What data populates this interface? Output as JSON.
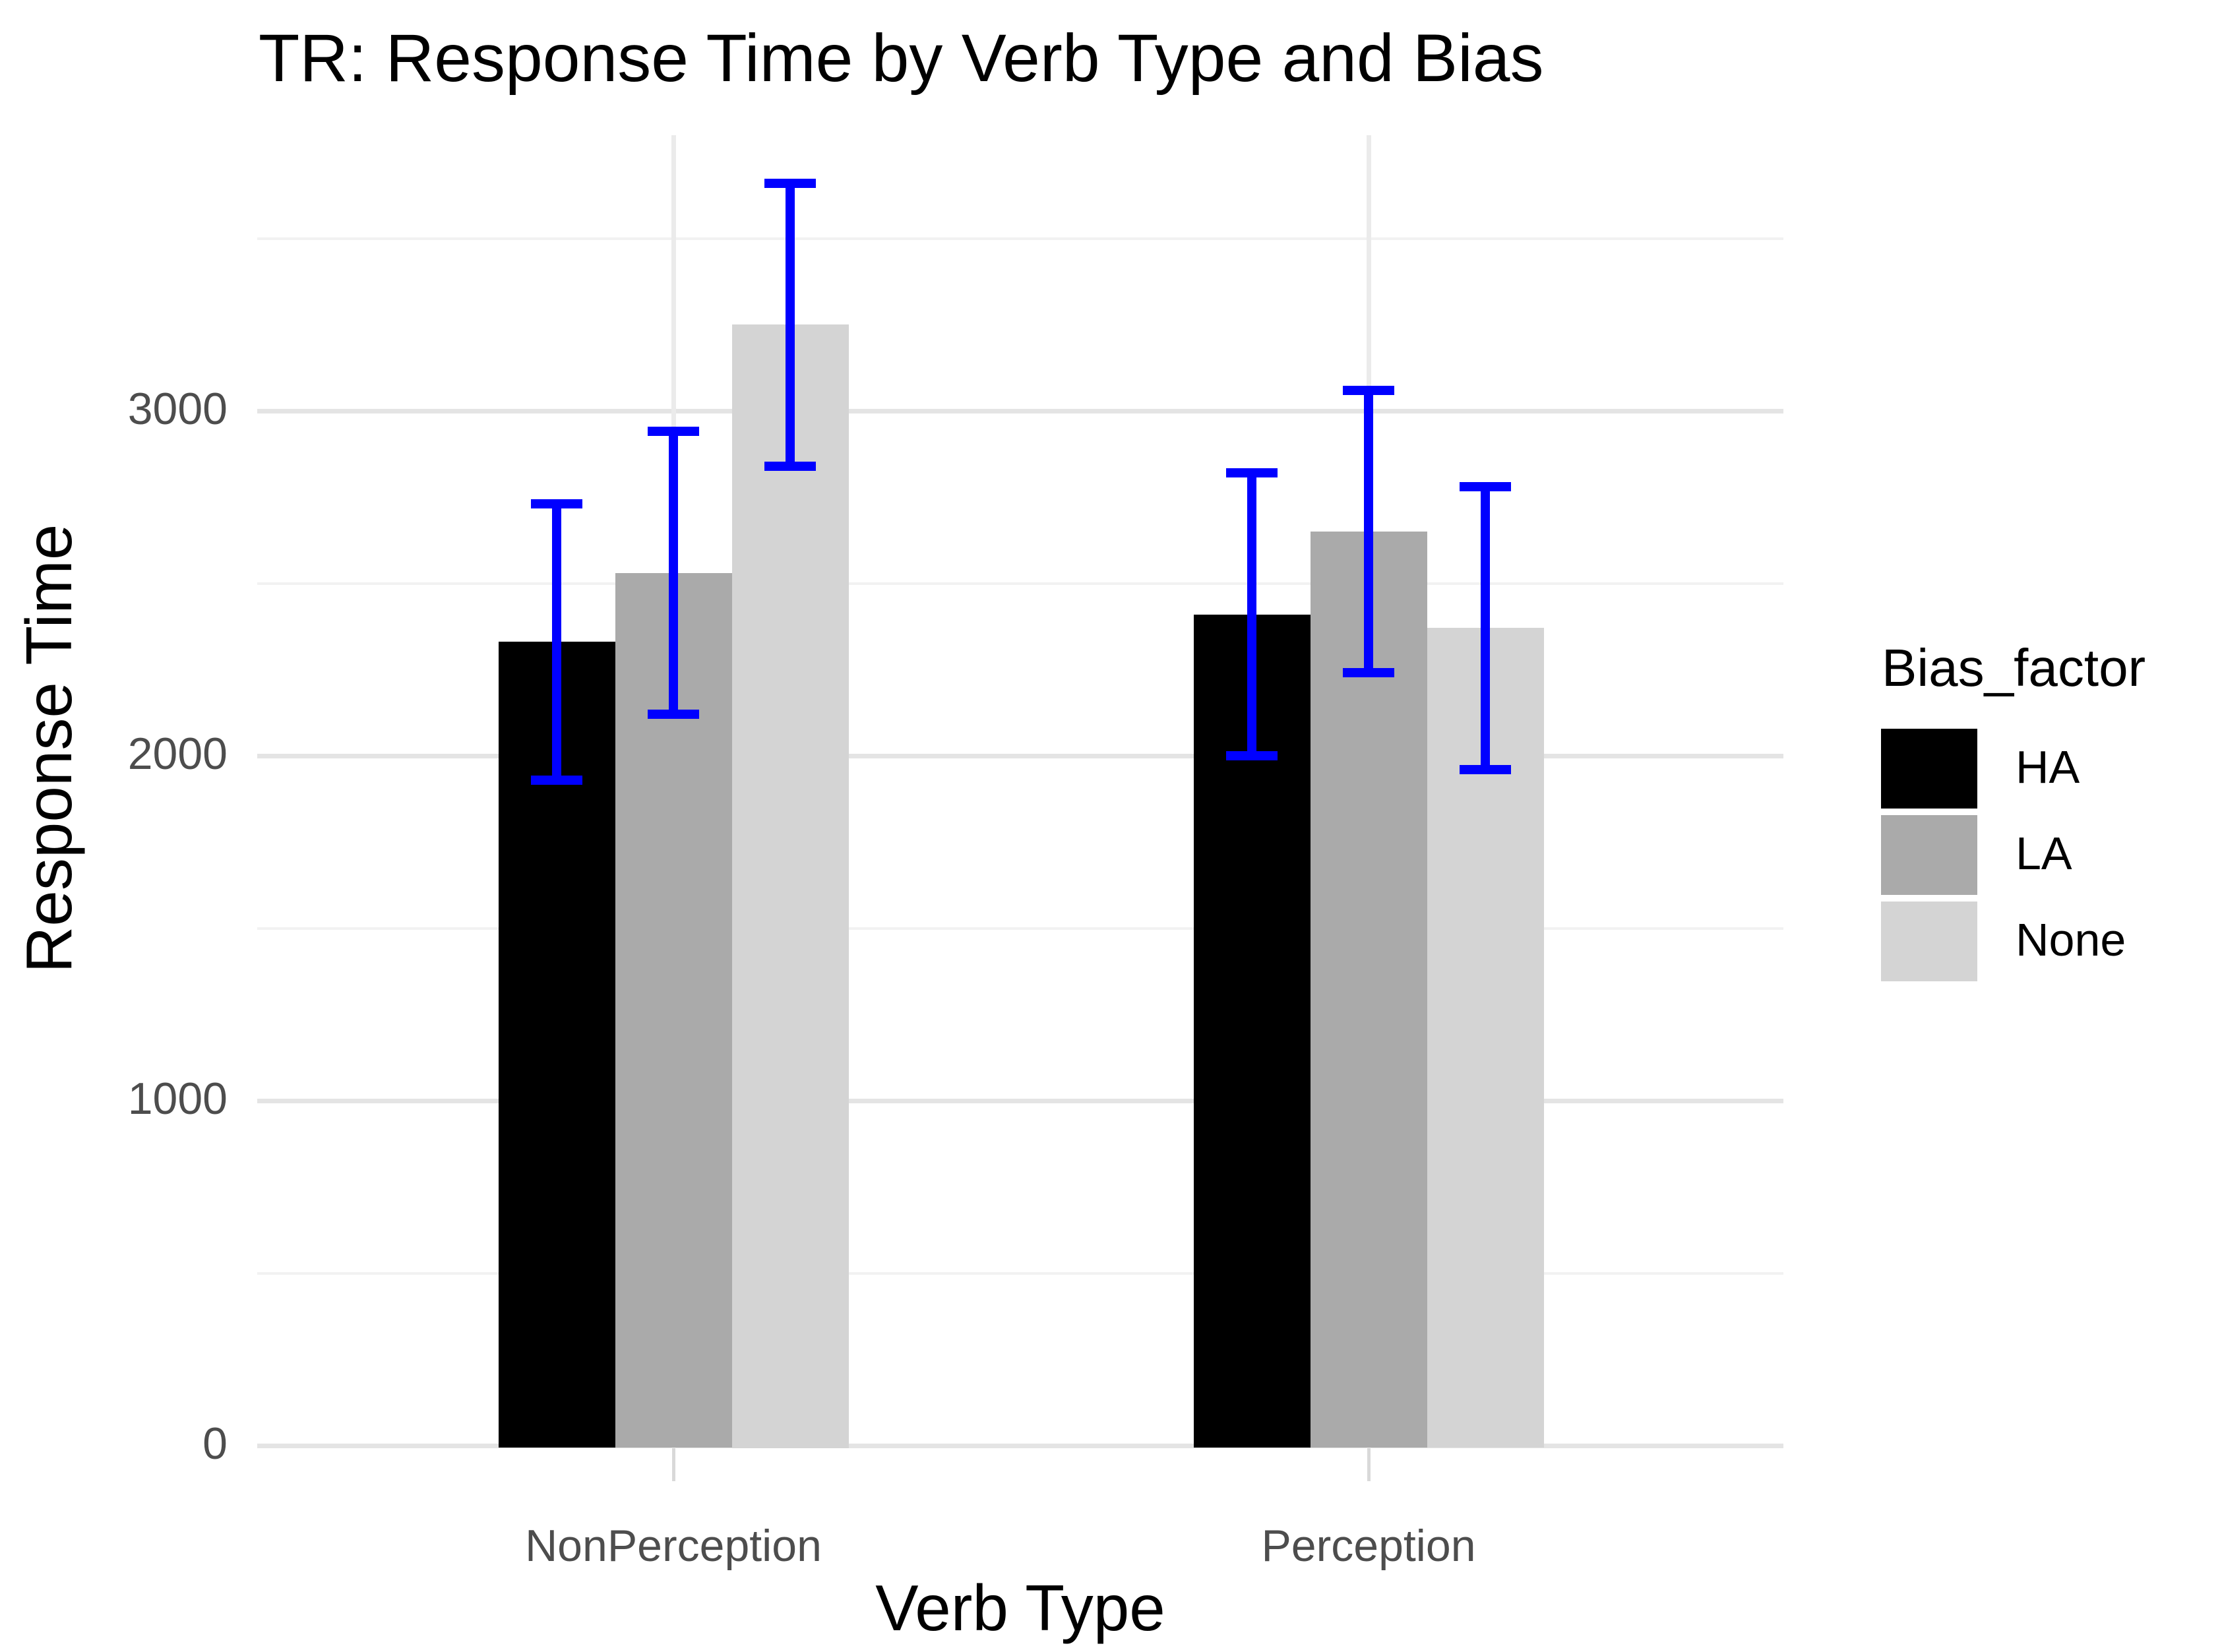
{
  "chart_data": {
    "type": "bar",
    "title": "TR: Response Time by Verb Type and Bias",
    "xlabel": "Verb Type",
    "ylabel": "Response Time",
    "categories": [
      "NonPerception",
      "Perception"
    ],
    "series": [
      {
        "name": "HA",
        "color": "#000000",
        "values": [
          2330,
          2410
        ],
        "error_low": [
          1930,
          2000
        ],
        "error_high": [
          2730,
          2820
        ]
      },
      {
        "name": "LA",
        "color": "#AAAAAA",
        "values": [
          2530,
          2650
        ],
        "error_low": [
          2120,
          2240
        ],
        "error_high": [
          2940,
          3060
        ]
      },
      {
        "name": "None",
        "color": "#D4D4D4",
        "values": [
          3250,
          2370
        ],
        "error_low": [
          2840,
          1960
        ],
        "error_high": [
          3660,
          2780
        ]
      }
    ],
    "legend_title": "Bias_factor",
    "legend_position": "right",
    "error_bar_color": "#0000FF",
    "y_ticks": [
      0,
      1000,
      2000,
      3000
    ],
    "y_minor_gridlines": [
      500,
      1500,
      2500,
      3500
    ],
    "ylim": [
      0,
      3800
    ],
    "grid": true,
    "colors": {
      "background": "#FFFFFF",
      "axis_text": "#4D4D4D",
      "grid_major": "#E4E4E4",
      "grid_minor": "#F2F2F2",
      "grid_vertical": "#EBEBEB",
      "tick_mark": "#D9D9D9",
      "title_text": "#000000"
    }
  }
}
